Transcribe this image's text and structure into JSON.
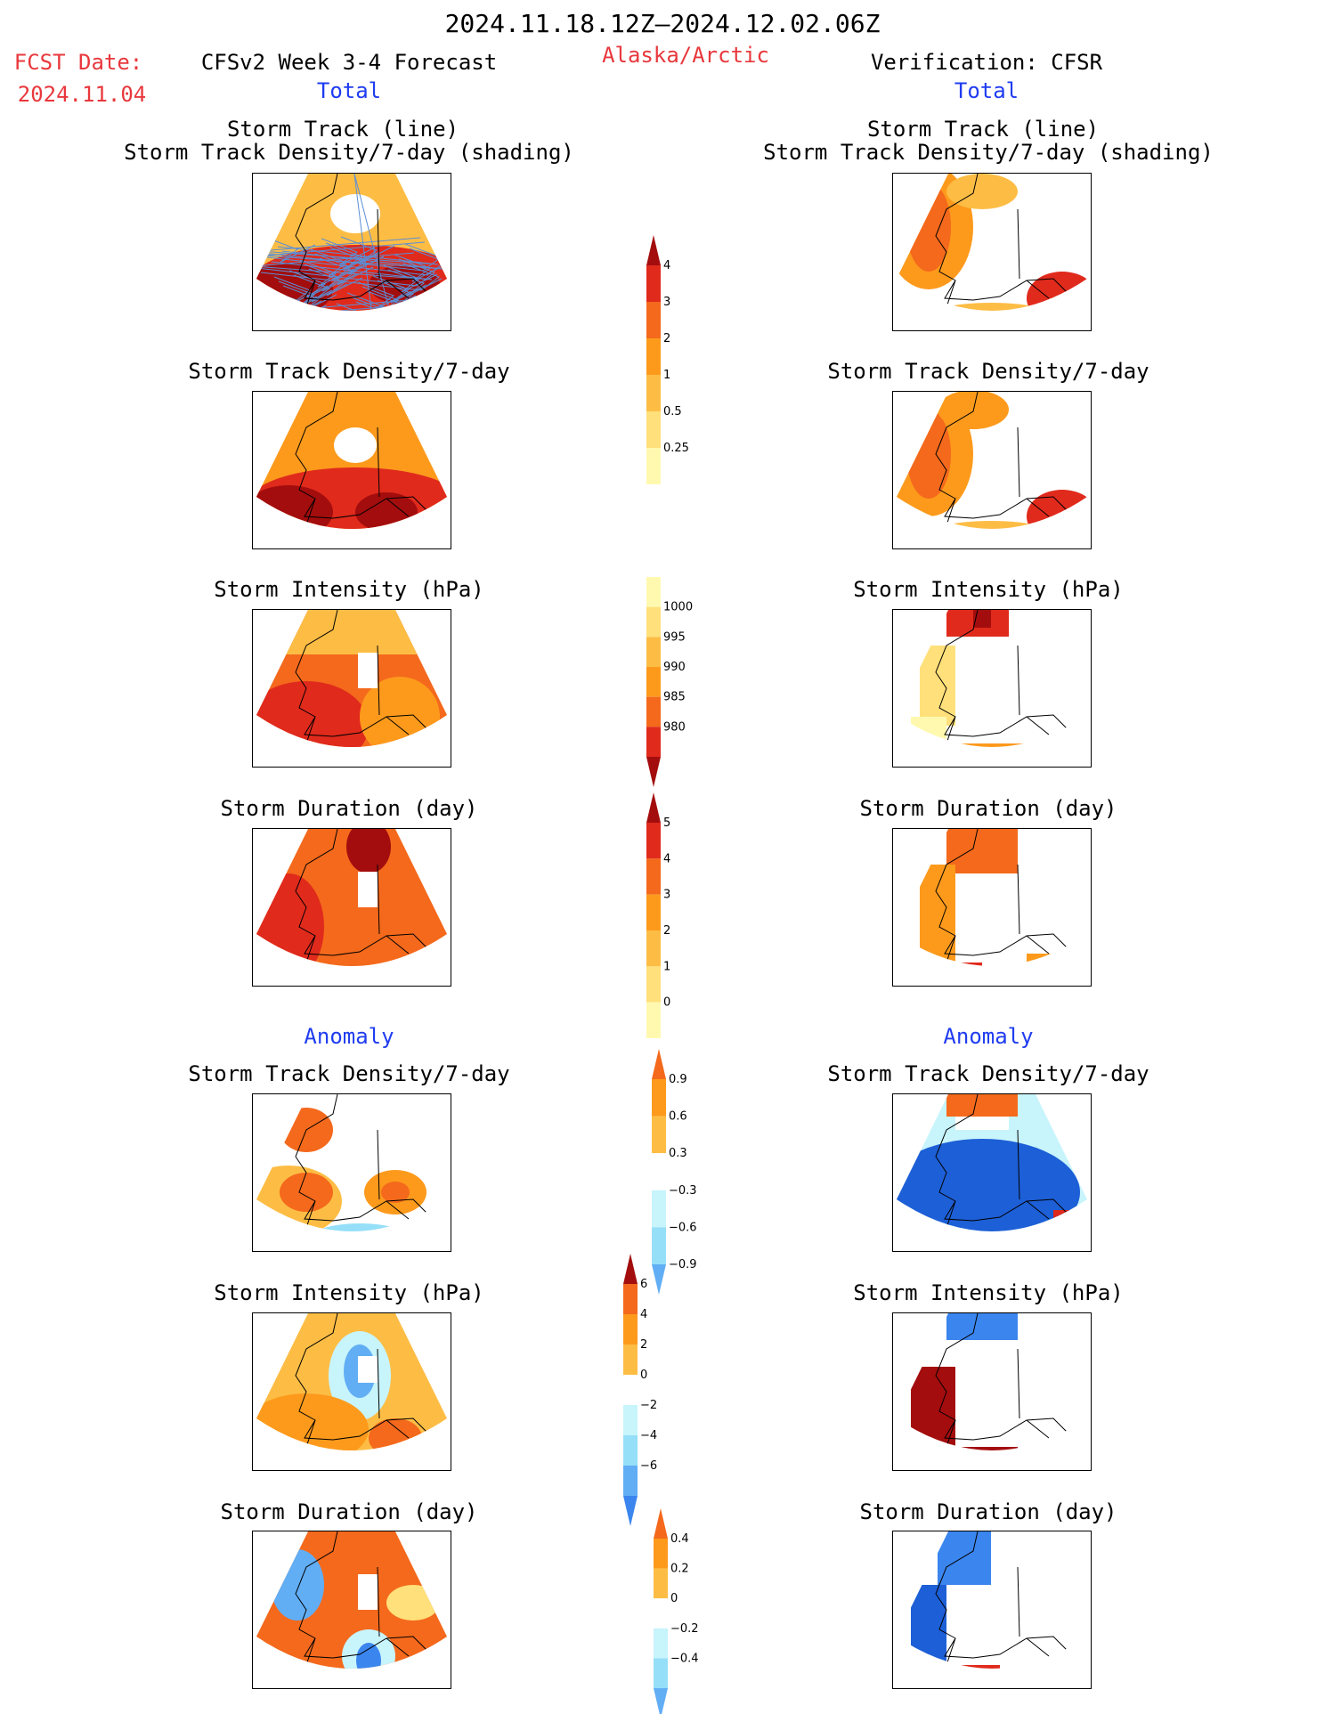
{
  "header": {
    "period": "2024.11.18.12Z–2024.12.02.06Z",
    "region": "Alaska/Arctic",
    "fcst_label": "FCST Date:",
    "fcst_date": "2024.11.04",
    "left_title": "CFSv2 Week 3-4 Forecast",
    "right_title": "Verification: CFSR",
    "left_subtitle": "Total",
    "right_subtitle": "Total"
  },
  "sections": {
    "anomaly_left": "Anomaly",
    "anomaly_right": "Anomaly"
  },
  "panel_titles": {
    "track_line": "Storm Track (line)",
    "track_shading": "Storm Track Density/7-day (shading)",
    "density": "Storm Track Density/7-day",
    "intensity": "Storm Intensity (hPa)",
    "duration": "Storm Duration (day)"
  },
  "colors": {
    "pos": [
      "#fff9b0",
      "#ffe07a",
      "#fdbd45",
      "#fd9a1c",
      "#f4691c",
      "#e02a1c",
      "#a30d0d"
    ],
    "neg": [
      "#c8f4fc",
      "#96dff8",
      "#61aef5",
      "#3b85ee",
      "#1d5fd6"
    ],
    "white": "#ffffff"
  },
  "colorbars": {
    "density_total": {
      "labels": [
        "4",
        "3",
        "2",
        "1",
        "0.5",
        "0.25"
      ]
    },
    "intensity_total": {
      "labels": [
        "1000",
        "995",
        "990",
        "985",
        "980"
      ]
    },
    "duration_total": {
      "labels": [
        "5",
        "4",
        "3",
        "2",
        "1",
        "0"
      ]
    },
    "density_anom": {
      "labels": [
        "0.9",
        "0.6",
        "0.3",
        "−0.3",
        "−0.6",
        "−0.9"
      ]
    },
    "intensity_anom": {
      "labels": [
        "6",
        "4",
        "2",
        "0",
        "−2",
        "−4",
        "−6"
      ]
    },
    "duration_anom": {
      "labels": [
        "0.4",
        "0.2",
        "0",
        "−0.2",
        "−0.4"
      ]
    }
  }
}
